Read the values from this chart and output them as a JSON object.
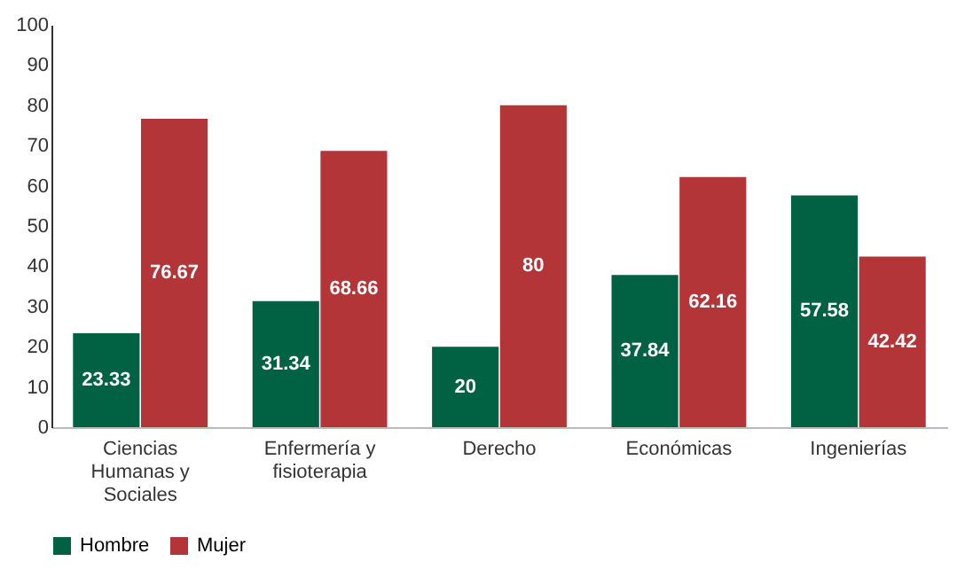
{
  "chart_data": {
    "type": "bar",
    "categories": [
      "Ciencias Humanas y Sociales",
      "Enfermería y fisioterapia",
      "Derecho",
      "Económicas",
      "Ingenierías"
    ],
    "series": [
      {
        "name": "Hombre",
        "color": "#006242",
        "values": [
          23.33,
          31.34,
          20,
          37.84,
          57.58
        ]
      },
      {
        "name": "Mujer",
        "color": "#b33538",
        "values": [
          76.67,
          68.66,
          80,
          62.16,
          42.42
        ]
      }
    ],
    "ylim": [
      0,
      100
    ],
    "yticks": [
      0,
      10,
      20,
      30,
      40,
      50,
      60,
      70,
      80,
      90,
      100
    ],
    "grid": false,
    "legend": "bottom",
    "data_labels": true
  }
}
